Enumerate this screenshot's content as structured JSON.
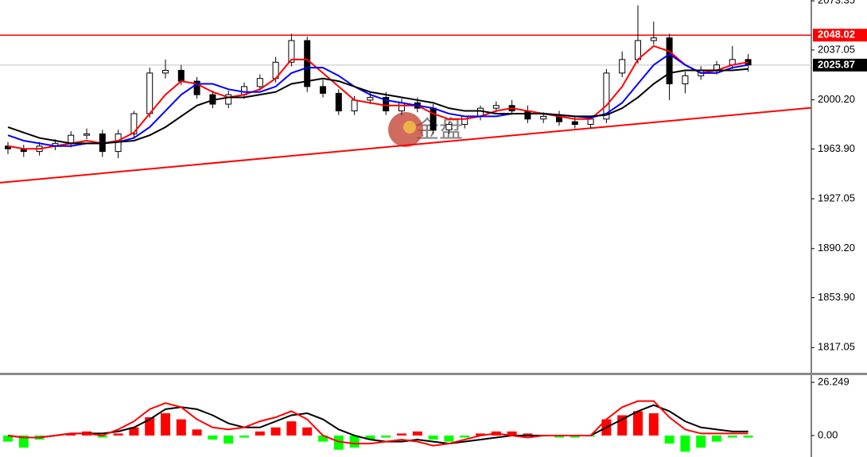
{
  "chart_data": {
    "type": "candlestick",
    "watermark": "金盘",
    "ylim": [
      1799,
      2074
    ],
    "yticks": [
      2073.35,
      2037.05,
      {
        "value": 2000.2,
        "label": "2000.20"
      },
      {
        "value": 1963.9,
        "label": "1963.90"
      },
      1927.05,
      {
        "value": 1890.2,
        "label": "1890.20"
      },
      {
        "value": 1853.9,
        "label": "1853.90"
      },
      1817.05
    ],
    "levels": [
      {
        "value": 2048.02,
        "color": "#ff0000",
        "label_bg": "#ff0000"
      },
      {
        "value": 2025.87,
        "color": "#c0c0c0",
        "label_bg": "#000000"
      }
    ],
    "trendline": {
      "values": [
        1938.9,
        1994.3
      ],
      "color": "#ff0000"
    },
    "open": [
      1966,
      1964,
      1962,
      1966,
      1968,
      1974,
      1975,
      1962,
      1975,
      1990,
      2020,
      2022,
      2014,
      2004,
      1997,
      2004,
      2010,
      2016,
      2028,
      2044,
      2010,
      2005,
      1992,
      2000,
      2002,
      1992,
      1998,
      1994,
      1978,
      1982,
      1988,
      1994,
      1996,
      1992,
      1986,
      1988,
      1984,
      1982,
      1986,
      2020,
      2030,
      2044,
      2046,
      2012,
      2018,
      2022,
      2026,
      2030
    ],
    "high": [
      1969,
      1967,
      1969,
      1971,
      1977,
      1979,
      1978,
      1978,
      1992,
      2024,
      2030,
      2026,
      2017,
      2007,
      2007,
      2013,
      2019,
      2032,
      2049,
      2047,
      2015,
      2008,
      2003,
      2006,
      2006,
      2001,
      2002,
      1997,
      1984,
      1988,
      1996,
      1999,
      2000,
      1996,
      1991,
      1992,
      1988,
      1988,
      2023,
      2036,
      2070,
      2058,
      2049,
      2021,
      2025,
      2029,
      2040,
      2034
    ],
    "low": [
      1960,
      1958,
      1959,
      1963,
      1965,
      1971,
      1958,
      1957,
      1972,
      1987,
      2016,
      2011,
      2001,
      1994,
      1994,
      2001,
      2007,
      2013,
      2025,
      2006,
      2002,
      1989,
      1989,
      1997,
      1989,
      1989,
      1991,
      1975,
      1975,
      1979,
      1985,
      1991,
      1989,
      1983,
      1983,
      1981,
      1979,
      1979,
      1983,
      2017,
      2027,
      2041,
      2000,
      2005,
      2015,
      2019,
      2023,
      2021
    ],
    "close": [
      1964,
      1962,
      1966,
      1968,
      1974,
      1975,
      1962,
      1975,
      1990,
      2020,
      2022,
      2014,
      2004,
      1997,
      2004,
      2010,
      2016,
      2028,
      2044,
      2010,
      2005,
      1992,
      2000,
      2002,
      1992,
      1998,
      1994,
      1978,
      1982,
      1988,
      1994,
      1996,
      1992,
      1986,
      1988,
      1984,
      1982,
      1986,
      2020,
      2030,
      2044,
      2046,
      2012,
      2018,
      2022,
      2026,
      2030,
      2026
    ],
    "up_color": "#ffffff",
    "down_color": "#000000",
    "series": [
      {
        "color": "#ff0000",
        "values": [
          1966,
          1964,
          1964,
          1966,
          1968,
          1970,
          1968,
          1970,
          1976,
          1990,
          2004,
          2014,
          2012,
          2006,
          2002,
          2004,
          2008,
          2016,
          2030,
          2030,
          2020,
          2010,
          2000,
          1998,
          1996,
          1996,
          1996,
          1990,
          1986,
          1986,
          1988,
          1992,
          1994,
          1992,
          1990,
          1988,
          1986,
          1986,
          1996,
          2010,
          2030,
          2040,
          2036,
          2026,
          2020,
          2022,
          2026,
          2028
        ]
      },
      {
        "color": "#0000ff",
        "values": [
          1974,
          1970,
          1968,
          1966,
          1966,
          1968,
          1968,
          1969,
          1972,
          1980,
          1992,
          2004,
          2012,
          2012,
          2008,
          2006,
          2006,
          2010,
          2020,
          2024,
          2024,
          2018,
          2010,
          2004,
          2000,
          1998,
          1996,
          1994,
          1990,
          1988,
          1988,
          1988,
          1990,
          1990,
          1990,
          1989,
          1988,
          1987,
          1990,
          1998,
          2012,
          2026,
          2034,
          2026,
          2020,
          2020,
          2024,
          2026
        ]
      },
      {
        "color": "#000000",
        "values": [
          1980,
          1976,
          1972,
          1970,
          1968,
          1968,
          1968,
          1969,
          1970,
          1974,
          1980,
          1988,
          1996,
          2000,
          2002,
          2002,
          2004,
          2006,
          2012,
          2014,
          2016,
          2014,
          2010,
          2006,
          2004,
          2002,
          2000,
          1998,
          1994,
          1992,
          1992,
          1990,
          1990,
          1990,
          1990,
          1989,
          1988,
          1988,
          1989,
          1994,
          2002,
          2012,
          2020,
          2022,
          2022,
          2022,
          2022,
          2023
        ]
      }
    ],
    "macd": {
      "ylim": [
        -10.6,
        29.8
      ],
      "yticks": [
        26.249,
        {
          "value": 0,
          "label": "0.00"
        }
      ],
      "up_color": "#ff0000",
      "down_color": "#00ff00",
      "histogram": [
        -3,
        -6,
        -2,
        0,
        1,
        2,
        -1,
        1,
        4,
        9,
        11,
        8,
        3,
        -2,
        -4,
        -1,
        2,
        4,
        7,
        4,
        -3,
        -7,
        -6,
        -2,
        -1,
        1,
        2,
        -2,
        -3,
        -1,
        1,
        2,
        2,
        1,
        -0.5,
        -1,
        -1,
        -0.5,
        8,
        10,
        12,
        11,
        -4,
        -8,
        -6,
        -3,
        -1,
        -1
      ],
      "series": [
        {
          "color": "#000000",
          "values": [
            0,
            -1,
            -1,
            0,
            1,
            1,
            1,
            2,
            4,
            8,
            13,
            14,
            13,
            10,
            6,
            4,
            4,
            7,
            10,
            11,
            8,
            3,
            0,
            -2,
            -3,
            -3,
            -2,
            -3,
            -4,
            -3,
            -2,
            -1,
            0,
            0,
            0,
            0,
            0,
            0,
            4,
            8,
            12,
            15,
            12,
            7,
            4,
            3,
            2,
            2
          ]
        },
        {
          "color": "#ff0000",
          "values": [
            0,
            -1,
            -1,
            0,
            1,
            1,
            0,
            3,
            7,
            13,
            16,
            14,
            8,
            4,
            3,
            4,
            7,
            9,
            12,
            8,
            0,
            -3,
            -4,
            -4,
            -3,
            -2,
            -3,
            -5,
            -4,
            -2,
            0,
            1,
            0,
            -1,
            0,
            0,
            0,
            0,
            8,
            14,
            17,
            17,
            9,
            3,
            1,
            1,
            1,
            1
          ]
        }
      ]
    }
  }
}
